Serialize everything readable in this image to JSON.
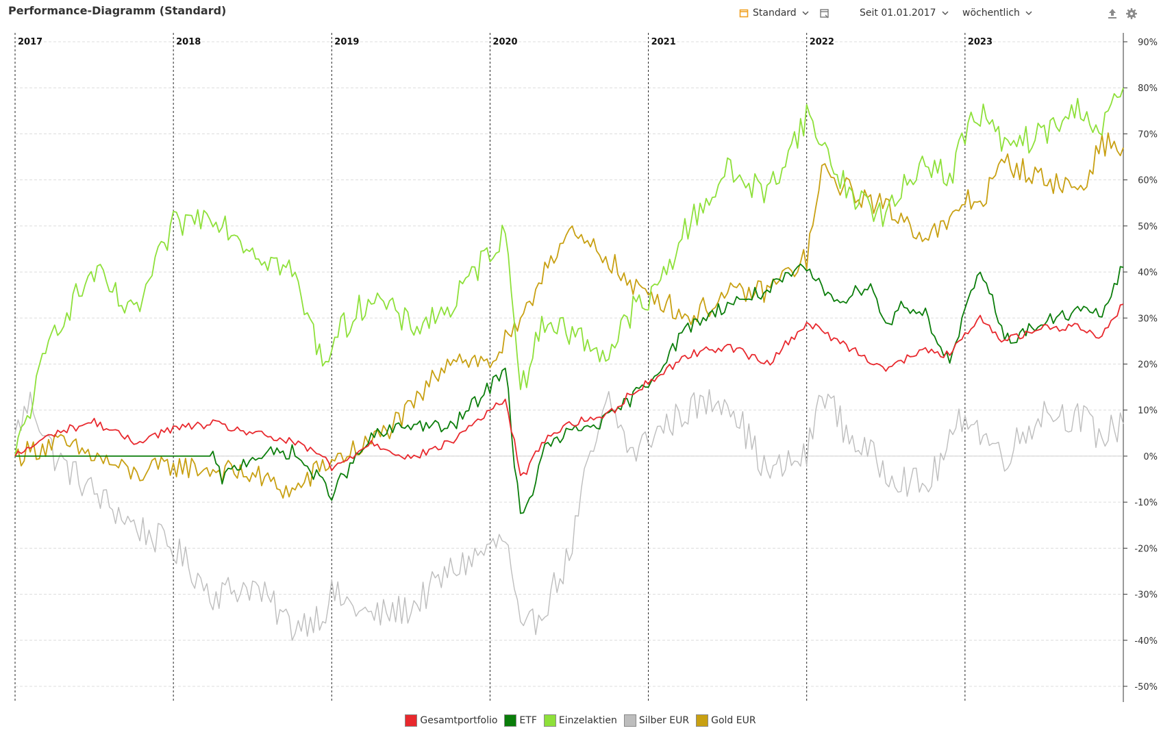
{
  "header": {
    "title": "Performance-Diagramm (Standard)",
    "view_label": "Standard",
    "period_label": "Seit 01.01.2017",
    "interval_label": "wöchentlich"
  },
  "colors": {
    "Gesamtportfolio": "#e8282d",
    "ETF": "#0a7d0a",
    "Einzelaktien": "#8ee03a",
    "Silber EUR": "#bdbdbd",
    "Gold EUR": "#c8a012",
    "accent": "#f0a020"
  },
  "icons": [
    "calendar-icon",
    "chevron-down-icon",
    "page-icon",
    "export-icon",
    "gear-icon"
  ],
  "chart_data": {
    "type": "line",
    "title": "Performance-Diagramm (Standard)",
    "x_start": "2017",
    "x_end": "2023",
    "year_ticks": [
      "2017",
      "2018",
      "2019",
      "2020",
      "2021",
      "2022",
      "2023"
    ],
    "ylim": [
      -50,
      90
    ],
    "y_ticks": [
      "90%",
      "80%",
      "70%",
      "60%",
      "50%",
      "40%",
      "30%",
      "20%",
      "10%",
      "0%",
      "-10%",
      "-20%",
      "-30%",
      "-40%",
      "-50%"
    ],
    "y_tick_values": [
      90,
      80,
      70,
      60,
      50,
      40,
      30,
      20,
      10,
      0,
      -10,
      -20,
      -30,
      -40,
      -50
    ],
    "x_units": "years (decimal)",
    "x_range": [
      2017.0,
      2024.0
    ],
    "grid": true,
    "legend_position": "bottom",
    "series": [
      {
        "name": "Gesamtportfolio",
        "points": [
          [
            2017.0,
            0
          ],
          [
            2017.25,
            5
          ],
          [
            2017.5,
            7.5
          ],
          [
            2017.75,
            3
          ],
          [
            2018.0,
            6
          ],
          [
            2018.25,
            7
          ],
          [
            2018.5,
            5
          ],
          [
            2018.75,
            3
          ],
          [
            2018.95,
            0
          ],
          [
            2019.0,
            -3
          ],
          [
            2019.25,
            3
          ],
          [
            2019.5,
            -0.5
          ],
          [
            2019.75,
            3
          ],
          [
            2020.0,
            10
          ],
          [
            2020.1,
            12
          ],
          [
            2020.2,
            -5
          ],
          [
            2020.35,
            4
          ],
          [
            2020.5,
            7
          ],
          [
            2020.75,
            9
          ],
          [
            2020.9,
            14
          ],
          [
            2021.0,
            16
          ],
          [
            2021.25,
            22
          ],
          [
            2021.5,
            24
          ],
          [
            2021.75,
            20
          ],
          [
            2022.0,
            29
          ],
          [
            2022.25,
            24
          ],
          [
            2022.5,
            19
          ],
          [
            2022.75,
            23
          ],
          [
            2022.9,
            22
          ],
          [
            2023.0,
            26
          ],
          [
            2023.1,
            30
          ],
          [
            2023.25,
            25
          ],
          [
            2023.5,
            28
          ],
          [
            2023.75,
            28
          ],
          [
            2023.85,
            26
          ],
          [
            2024.0,
            33
          ]
        ]
      },
      {
        "name": "ETF",
        "points": [
          [
            2017.0,
            0
          ],
          [
            2017.5,
            0
          ],
          [
            2018.0,
            0
          ],
          [
            2018.25,
            0
          ],
          [
            2018.3,
            -5
          ],
          [
            2018.5,
            0
          ],
          [
            2018.75,
            1
          ],
          [
            2019.0,
            -8
          ],
          [
            2019.25,
            4
          ],
          [
            2019.5,
            7
          ],
          [
            2019.75,
            6
          ],
          [
            2020.0,
            15
          ],
          [
            2020.1,
            20
          ],
          [
            2020.15,
            0
          ],
          [
            2020.2,
            -15
          ],
          [
            2020.35,
            2
          ],
          [
            2020.5,
            5
          ],
          [
            2020.75,
            8
          ],
          [
            2021.0,
            16
          ],
          [
            2021.25,
            28
          ],
          [
            2021.5,
            33
          ],
          [
            2021.75,
            36
          ],
          [
            2022.0,
            41
          ],
          [
            2022.1,
            36
          ],
          [
            2022.25,
            34
          ],
          [
            2022.4,
            38
          ],
          [
            2022.5,
            28
          ],
          [
            2022.6,
            33
          ],
          [
            2022.75,
            31
          ],
          [
            2022.9,
            20
          ],
          [
            2023.0,
            31
          ],
          [
            2023.1,
            40
          ],
          [
            2023.2,
            32
          ],
          [
            2023.25,
            25
          ],
          [
            2023.5,
            29
          ],
          [
            2023.75,
            32
          ],
          [
            2023.85,
            30
          ],
          [
            2024.0,
            41
          ]
        ]
      },
      {
        "name": "Einzelaktien",
        "points": [
          [
            2017.0,
            0
          ],
          [
            2017.25,
            28
          ],
          [
            2017.5,
            40
          ],
          [
            2017.75,
            30
          ],
          [
            2018.0,
            50
          ],
          [
            2018.25,
            53
          ],
          [
            2018.5,
            45
          ],
          [
            2018.75,
            40
          ],
          [
            2018.95,
            20
          ],
          [
            2019.0,
            25
          ],
          [
            2019.25,
            35
          ],
          [
            2019.5,
            28
          ],
          [
            2019.75,
            32
          ],
          [
            2020.0,
            45
          ],
          [
            2020.1,
            48
          ],
          [
            2020.2,
            15
          ],
          [
            2020.35,
            30
          ],
          [
            2020.5,
            27
          ],
          [
            2020.75,
            22
          ],
          [
            2020.9,
            32
          ],
          [
            2021.0,
            33
          ],
          [
            2021.25,
            50
          ],
          [
            2021.5,
            62
          ],
          [
            2021.75,
            57
          ],
          [
            2022.0,
            74
          ],
          [
            2022.25,
            58
          ],
          [
            2022.5,
            52
          ],
          [
            2022.75,
            65
          ],
          [
            2022.9,
            60
          ],
          [
            2023.0,
            70
          ],
          [
            2023.1,
            75
          ],
          [
            2023.25,
            67
          ],
          [
            2023.5,
            70
          ],
          [
            2023.75,
            76
          ],
          [
            2023.85,
            70
          ],
          [
            2024.0,
            80
          ]
        ]
      },
      {
        "name": "Silber EUR",
        "points": [
          [
            2017.0,
            5
          ],
          [
            2017.1,
            12
          ],
          [
            2017.25,
            0
          ],
          [
            2017.5,
            -8
          ],
          [
            2017.75,
            -15
          ],
          [
            2018.0,
            -20
          ],
          [
            2018.25,
            -30
          ],
          [
            2018.5,
            -28
          ],
          [
            2018.75,
            -37
          ],
          [
            2018.95,
            -34
          ],
          [
            2019.0,
            -30
          ],
          [
            2019.25,
            -35
          ],
          [
            2019.5,
            -33
          ],
          [
            2019.75,
            -25
          ],
          [
            2020.0,
            -20
          ],
          [
            2020.1,
            -18
          ],
          [
            2020.2,
            -40
          ],
          [
            2020.35,
            -32
          ],
          [
            2020.5,
            -22
          ],
          [
            2020.6,
            -5
          ],
          [
            2020.75,
            12
          ],
          [
            2020.9,
            0
          ],
          [
            2021.0,
            4
          ],
          [
            2021.25,
            10
          ],
          [
            2021.5,
            13
          ],
          [
            2021.75,
            -4
          ],
          [
            2022.0,
            0
          ],
          [
            2022.1,
            15
          ],
          [
            2022.25,
            5
          ],
          [
            2022.5,
            -3
          ],
          [
            2022.75,
            -7
          ],
          [
            2022.9,
            2
          ],
          [
            2023.0,
            10
          ],
          [
            2023.1,
            5
          ],
          [
            2023.25,
            0
          ],
          [
            2023.5,
            10
          ],
          [
            2023.75,
            8
          ],
          [
            2023.85,
            4
          ],
          [
            2024.0,
            7
          ]
        ]
      },
      {
        "name": "Gold EUR",
        "points": [
          [
            2017.0,
            0
          ],
          [
            2017.25,
            3
          ],
          [
            2017.5,
            0
          ],
          [
            2017.75,
            -4
          ],
          [
            2018.0,
            -2
          ],
          [
            2018.25,
            -3
          ],
          [
            2018.5,
            -4
          ],
          [
            2018.75,
            -8
          ],
          [
            2018.95,
            -2
          ],
          [
            2019.0,
            -1
          ],
          [
            2019.25,
            3
          ],
          [
            2019.5,
            10
          ],
          [
            2019.75,
            22
          ],
          [
            2020.0,
            20
          ],
          [
            2020.1,
            25
          ],
          [
            2020.2,
            28
          ],
          [
            2020.35,
            42
          ],
          [
            2020.5,
            48
          ],
          [
            2020.75,
            43
          ],
          [
            2020.9,
            36
          ],
          [
            2021.0,
            36
          ],
          [
            2021.25,
            30
          ],
          [
            2021.5,
            35
          ],
          [
            2021.75,
            36
          ],
          [
            2022.0,
            43
          ],
          [
            2022.1,
            62
          ],
          [
            2022.25,
            58
          ],
          [
            2022.5,
            54
          ],
          [
            2022.75,
            48
          ],
          [
            2022.9,
            50
          ],
          [
            2023.0,
            56
          ],
          [
            2023.1,
            55
          ],
          [
            2023.25,
            64
          ],
          [
            2023.5,
            60
          ],
          [
            2023.75,
            58
          ],
          [
            2023.85,
            68
          ],
          [
            2024.0,
            67
          ]
        ]
      }
    ]
  },
  "legend": {
    "items": [
      "Gesamtportfolio",
      "ETF",
      "Einzelaktien",
      "Silber EUR",
      "Gold EUR"
    ]
  }
}
